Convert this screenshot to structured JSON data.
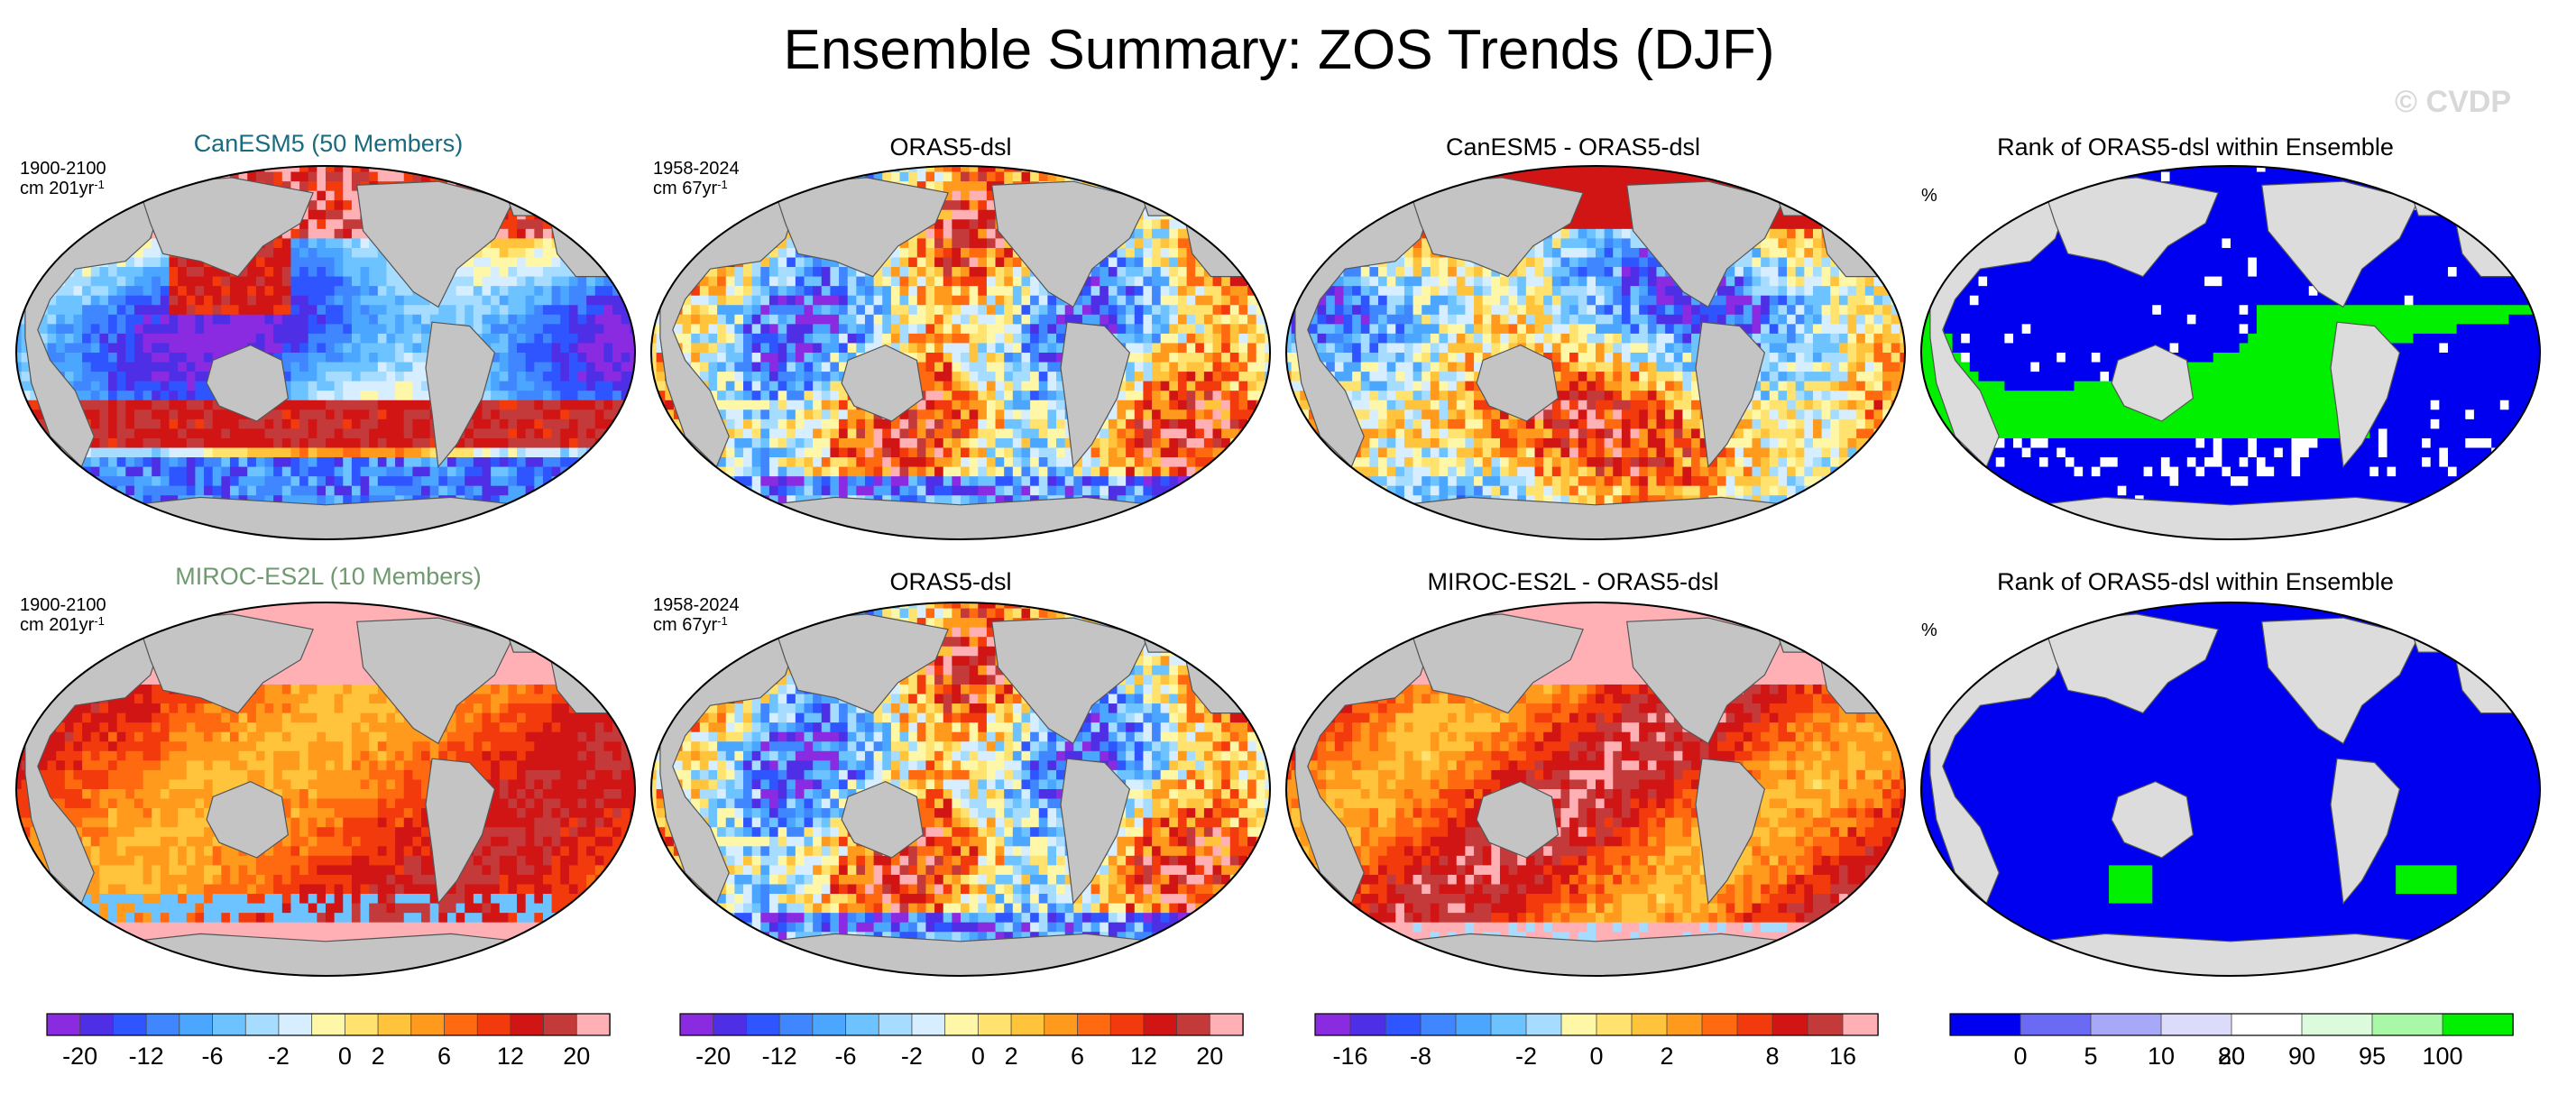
{
  "title": "Ensemble Summary: ZOS Trends (DJF)",
  "watermark": "© CVDP",
  "colors": {
    "ocean_gray": "#bdbdbd",
    "land_gray": "#c4c4c4",
    "land_light": "#dcdcdc",
    "rank_blue": "#0000f0",
    "rank_green": "#00f000",
    "pink": "#ffb0b5",
    "canesm_title": "#1a6a80",
    "miroc_title": "#6f9a6f"
  },
  "rows": [
    {
      "panels": [
        {
          "title": "CanESM5 (50 Members)",
          "title_color": "#1a6a80",
          "period": "1900-2100",
          "units_prefix": "cm 201yr",
          "units_sup": "-1",
          "style": "canesm_ens"
        },
        {
          "title": "ORAS5-dsl",
          "title_color": "#000000",
          "period": "1958-2024",
          "units_prefix": "cm 67yr",
          "units_sup": "-1",
          "style": "oras"
        },
        {
          "title": "CanESM5 - ORAS5-dsl",
          "title_color": "#000000",
          "style": "canesm_diff"
        },
        {
          "title": "Rank of ORAS5-dsl within Ensemble",
          "title_color": "#000000",
          "pct": "%",
          "style": "rank_mixed"
        }
      ]
    },
    {
      "panels": [
        {
          "title": "MIROC-ES2L (10 Members)",
          "title_color": "#6f9a6f",
          "period": "1900-2100",
          "units_prefix": "cm 201yr",
          "units_sup": "-1",
          "style": "miroc_ens"
        },
        {
          "title": "ORAS5-dsl",
          "title_color": "#000000",
          "period": "1958-2024",
          "units_prefix": "cm 67yr",
          "units_sup": "-1",
          "style": "oras"
        },
        {
          "title": "MIROC-ES2L - ORAS5-dsl",
          "title_color": "#000000",
          "style": "miroc_diff"
        },
        {
          "title": "Rank of ORAS5-dsl within Ensemble",
          "title_color": "#000000",
          "pct": "%",
          "style": "rank_blue"
        }
      ]
    }
  ],
  "chart_data": [
    {
      "type": "heatmap",
      "title": "CanESM5 (50 Members)",
      "subtitle": "1900-2100, cm 201yr-1",
      "colorbar": {
        "ticks": [
          "-20",
          "-12",
          "-6",
          "-2",
          "0",
          "2",
          "6",
          "12",
          "20"
        ],
        "colors": [
          "#8a2be2",
          "#4f2fe6",
          "#2e55ff",
          "#3f86ff",
          "#4aa6ff",
          "#6cc3ff",
          "#a6dcff",
          "#d6eeff",
          "#fff7a8",
          "#ffe36e",
          "#ffc43c",
          "#ff9a1c",
          "#ff6a10",
          "#f23a0c",
          "#d11414",
          "#c43a3a",
          "#ffb0b5"
        ]
      }
    },
    {
      "type": "heatmap",
      "title": "ORAS5-dsl",
      "subtitle": "1958-2024, cm 67yr-1",
      "colorbar": {
        "ticks": [
          "-20",
          "-12",
          "-6",
          "-2",
          "0",
          "2",
          "6",
          "12",
          "20"
        ]
      }
    },
    {
      "type": "heatmap",
      "title": "CanESM5 - ORAS5-dsl",
      "colorbar": {
        "ticks": [
          "-16",
          "-8",
          "-2",
          "0",
          "2",
          "8",
          "16"
        ],
        "colors": [
          "#8a2be2",
          "#4f2fe6",
          "#2e55ff",
          "#3f86ff",
          "#4aa6ff",
          "#6cc3ff",
          "#a6dcff",
          "#fff7a8",
          "#ffe36e",
          "#ffc43c",
          "#ff9a1c",
          "#ff6a10",
          "#f23a0c",
          "#d11414",
          "#c43a3a",
          "#ffb0b5"
        ]
      }
    },
    {
      "type": "heatmap",
      "title": "Rank of ORAS5-dsl within Ensemble",
      "units": "%",
      "colorbar": {
        "ticks": [
          "0",
          "5",
          "10",
          "20",
          "80",
          "90",
          "95",
          "100"
        ],
        "colors": [
          "#0000f0",
          "#6a6af5",
          "#a8a8f8",
          "#dcdcfa",
          "#ffffff",
          "#dcfadc",
          "#a8f8a8",
          "#00f000"
        ]
      }
    },
    {
      "type": "heatmap",
      "title": "MIROC-ES2L (10 Members)",
      "subtitle": "1900-2100, cm 201yr-1"
    },
    {
      "type": "heatmap",
      "title": "ORAS5-dsl",
      "subtitle": "1958-2024, cm 67yr-1"
    },
    {
      "type": "heatmap",
      "title": "MIROC-ES2L - ORAS5-dsl"
    },
    {
      "type": "heatmap",
      "title": "Rank of ORAS5-dsl within Ensemble",
      "units": "%"
    }
  ],
  "colorbars": [
    {
      "ticks": [
        "-20",
        "-12",
        "-6",
        "-2",
        "0",
        "2",
        "6",
        "12",
        "20"
      ],
      "colors": [
        "#8a2be2",
        "#4f2fe6",
        "#2e55ff",
        "#3f86ff",
        "#4aa6ff",
        "#6cc3ff",
        "#a6dcff",
        "#d6eeff",
        "#fff7a8",
        "#ffe36e",
        "#ffc43c",
        "#ff9a1c",
        "#ff6a10",
        "#f23a0c",
        "#d11414",
        "#c43a3a",
        "#ffb0b5"
      ]
    },
    {
      "ticks": [
        "-20",
        "-12",
        "-6",
        "-2",
        "0",
        "2",
        "6",
        "12",
        "20"
      ],
      "colors": [
        "#8a2be2",
        "#4f2fe6",
        "#2e55ff",
        "#3f86ff",
        "#4aa6ff",
        "#6cc3ff",
        "#a6dcff",
        "#d6eeff",
        "#fff7a8",
        "#ffe36e",
        "#ffc43c",
        "#ff9a1c",
        "#ff6a10",
        "#f23a0c",
        "#d11414",
        "#c43a3a",
        "#ffb0b5"
      ]
    },
    {
      "ticks": [
        "-16",
        "-8",
        "-2",
        "0",
        "2",
        "8",
        "16"
      ],
      "colors": [
        "#8a2be2",
        "#4f2fe6",
        "#2e55ff",
        "#3f86ff",
        "#4aa6ff",
        "#6cc3ff",
        "#a6dcff",
        "#fff7a8",
        "#ffe36e",
        "#ffc43c",
        "#ff9a1c",
        "#ff6a10",
        "#f23a0c",
        "#d11414",
        "#c43a3a",
        "#ffb0b5"
      ]
    },
    {
      "ticks": [
        "0",
        "5",
        "10",
        "20",
        "80",
        "90",
        "95",
        "100"
      ],
      "colors": [
        "#0000f0",
        "#6a6af5",
        "#a8a8f8",
        "#dcdcfa",
        "#ffffff",
        "#dcfadc",
        "#a8f8a8",
        "#00f000"
      ]
    }
  ]
}
